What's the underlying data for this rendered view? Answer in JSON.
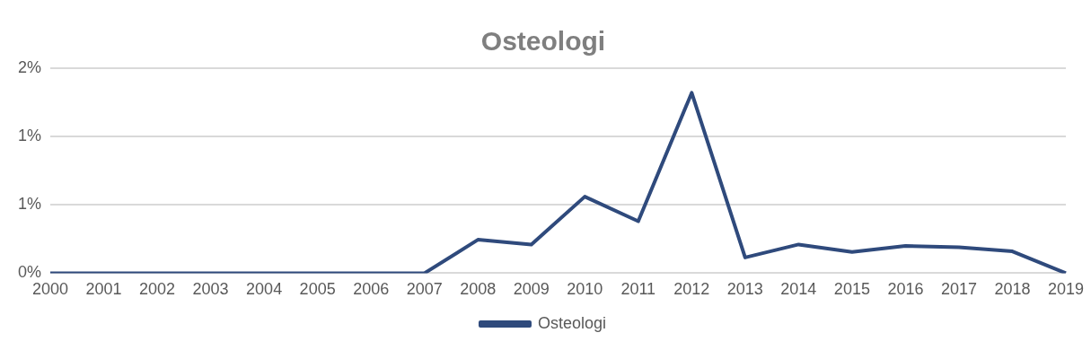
{
  "chart_data": {
    "type": "line",
    "title": "Osteologi",
    "categories": [
      "2000",
      "2001",
      "2002",
      "2003",
      "2004",
      "2005",
      "2006",
      "2007",
      "2008",
      "2009",
      "2010",
      "2011",
      "2012",
      "2013",
      "2014",
      "2015",
      "2016",
      "2017",
      "2018",
      "2019"
    ],
    "series": [
      {
        "name": "Osteologi",
        "color": "#2f4a7c",
        "values": [
          0,
          0,
          0,
          0,
          0,
          0,
          0,
          0,
          0.245,
          0.21,
          0.56,
          0.38,
          1.32,
          0.115,
          0.21,
          0.155,
          0.2,
          0.19,
          0.16,
          0
        ]
      }
    ],
    "ylim": [
      0,
      1.5
    ],
    "yticks": [
      {
        "value": 0,
        "label": "0%"
      },
      {
        "value": 0.5,
        "label": "1%"
      },
      {
        "value": 1,
        "label": "1%"
      },
      {
        "value": 1.5,
        "label": "2%"
      }
    ],
    "grid": "y",
    "legend": "bottom",
    "marker": "none",
    "line_style": "solid"
  }
}
